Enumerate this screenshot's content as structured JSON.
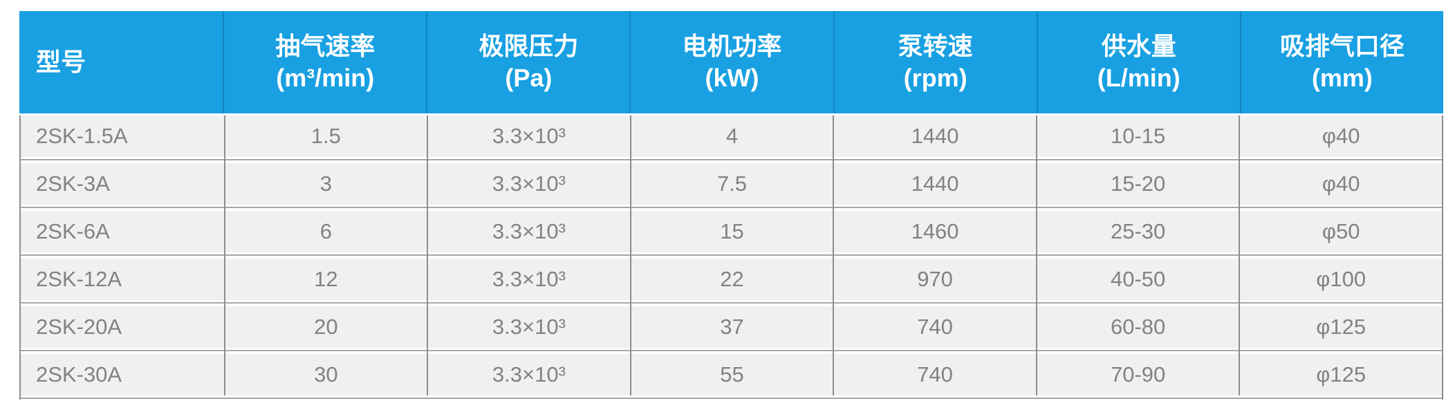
{
  "table": {
    "header": {
      "columns": [
        {
          "label": "型号",
          "unit": ""
        },
        {
          "label": "抽气速率",
          "unit": "(m³/min)"
        },
        {
          "label": "极限压力",
          "unit": "(Pa)"
        },
        {
          "label": "电机功率",
          "unit": "(kW)"
        },
        {
          "label": "泵转速",
          "unit": "(rpm)"
        },
        {
          "label": "供水量",
          "unit": "(L/min)"
        },
        {
          "label": "吸排气口径",
          "unit": "(mm)"
        }
      ]
    },
    "rows": [
      [
        "2SK-1.5A",
        "1.5",
        "3.3×10³",
        "4",
        "1440",
        "10-15",
        "φ40"
      ],
      [
        "2SK-3A",
        "3",
        "3.3×10³",
        "7.5",
        "1440",
        "15-20",
        "φ40"
      ],
      [
        "2SK-6A",
        "6",
        "3.3×10³",
        "15",
        "1460",
        "25-30",
        "φ50"
      ],
      [
        "2SK-12A",
        "12",
        "3.3×10³",
        "22",
        "970",
        "40-50",
        "φ100"
      ],
      [
        "2SK-20A",
        "20",
        "3.3×10³",
        "37",
        "740",
        "60-80",
        "φ125"
      ],
      [
        "2SK-30A",
        "30",
        "3.3×10³",
        "55",
        "740",
        "70-90",
        "φ125"
      ]
    ],
    "colors": {
      "header_bg": "#18a0e2",
      "header_text": "#ffffff",
      "header_divider": "#1286c0",
      "row_bg": "#f1f0f1",
      "row_text": "#828282",
      "grid_line_vertical": "#8d8d8d",
      "grid_line_horizontal": "#a5a5a5",
      "page_bg": "#ffffff"
    }
  },
  "chart_data": {
    "type": "table",
    "columns": [
      "型号",
      "抽气速率 (m³/min)",
      "极限压力 (Pa)",
      "电机功率 (kW)",
      "泵转速 (rpm)",
      "供水量 (L/min)",
      "吸排气口径 (mm)"
    ],
    "rows": [
      [
        "2SK-1.5A",
        "1.5",
        "3.3×10³",
        "4",
        "1440",
        "10-15",
        "φ40"
      ],
      [
        "2SK-3A",
        "3",
        "3.3×10³",
        "7.5",
        "1440",
        "15-20",
        "φ40"
      ],
      [
        "2SK-6A",
        "6",
        "3.3×10³",
        "15",
        "1460",
        "25-30",
        "φ50"
      ],
      [
        "2SK-12A",
        "12",
        "3.3×10³",
        "22",
        "970",
        "40-50",
        "φ100"
      ],
      [
        "2SK-20A",
        "20",
        "3.3×10³",
        "37",
        "740",
        "60-80",
        "φ125"
      ],
      [
        "2SK-30A",
        "30",
        "3.3×10³",
        "55",
        "740",
        "70-90",
        "φ125"
      ]
    ]
  }
}
